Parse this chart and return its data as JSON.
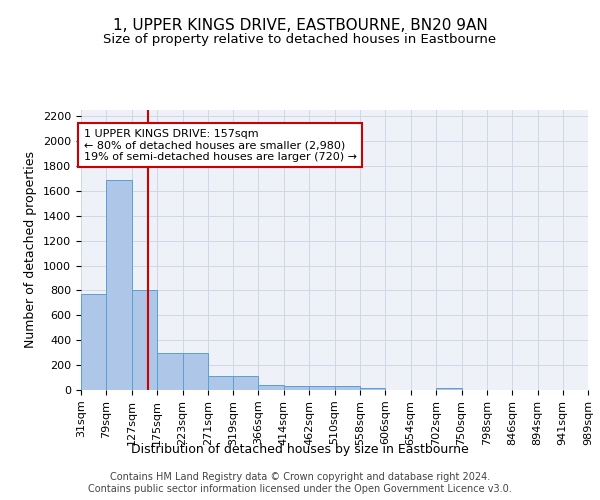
{
  "title": "1, UPPER KINGS DRIVE, EASTBOURNE, BN20 9AN",
  "subtitle": "Size of property relative to detached houses in Eastbourne",
  "xlabel": "Distribution of detached houses by size in Eastbourne",
  "ylabel": "Number of detached properties",
  "bin_edges": [
    31,
    79,
    127,
    175,
    223,
    271,
    319,
    366,
    414,
    462,
    510,
    558,
    606,
    654,
    702,
    750,
    798,
    846,
    894,
    941,
    989
  ],
  "bar_heights": [
    775,
    1685,
    800,
    295,
    295,
    115,
    115,
    40,
    30,
    30,
    30,
    20,
    0,
    0,
    20,
    0,
    0,
    0,
    0,
    0
  ],
  "bar_color": "#aec6e8",
  "bar_edge_color": "#5a9fd4",
  "grid_color": "#d0d8e8",
  "background_color": "#eef2f8",
  "vline_x": 157,
  "vline_color": "#cc0000",
  "annotation_text": "1 UPPER KINGS DRIVE: 157sqm\n← 80% of detached houses are smaller (2,980)\n19% of semi-detached houses are larger (720) →",
  "annotation_box_color": "#cc0000",
  "ylim": [
    0,
    2250
  ],
  "yticks": [
    0,
    200,
    400,
    600,
    800,
    1000,
    1200,
    1400,
    1600,
    1800,
    2000,
    2200
  ],
  "footer_text": "Contains HM Land Registry data © Crown copyright and database right 2024.\nContains public sector information licensed under the Open Government Licence v3.0.",
  "title_fontsize": 11,
  "subtitle_fontsize": 9.5,
  "xlabel_fontsize": 9,
  "ylabel_fontsize": 9,
  "tick_fontsize": 8,
  "annotation_fontsize": 8,
  "footer_fontsize": 7
}
